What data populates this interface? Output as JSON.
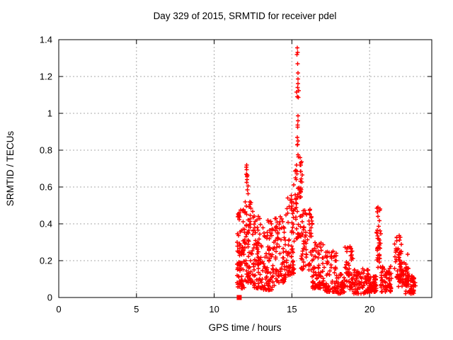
{
  "chart_data": {
    "type": "scatter",
    "title": "Day 329 of 2015, SRMTID for receiver pdel",
    "xlabel": "GPS time / hours",
    "ylabel": "SRMTID / TECUs",
    "xlim": [
      0,
      24
    ],
    "ylim": [
      0,
      1.4
    ],
    "xticks": [
      0,
      5,
      10,
      15,
      20
    ],
    "xtick_labels": [
      "0",
      "5",
      "10",
      "15",
      "20"
    ],
    "yticks": [
      0,
      0.2,
      0.4,
      0.6,
      0.8,
      1.0,
      1.2,
      1.4
    ],
    "ytick_labels": [
      "0",
      "0.2",
      "0.4",
      "0.6",
      "0.8",
      "1",
      "1.2",
      "1.4"
    ],
    "grid": true,
    "grid_style": "dashed",
    "grid_color": "#a9a9a9",
    "border_color": "#000000",
    "marker": "plus",
    "marker_color": "#ff0000",
    "data_extent_hours": [
      11.45,
      22.95
    ],
    "seed": 1329,
    "clusters": [
      [
        11.45,
        11.95,
        0.05,
        0.48,
        80,
        1.6
      ],
      [
        11.95,
        12.55,
        0.08,
        0.52,
        80,
        1.7
      ],
      [
        12.05,
        12.18,
        0.56,
        0.72,
        8,
        1.0
      ],
      [
        12.55,
        13.1,
        0.05,
        0.46,
        70,
        1.7
      ],
      [
        13.1,
        13.95,
        0.04,
        0.44,
        90,
        1.8
      ],
      [
        13.95,
        14.6,
        0.08,
        0.46,
        70,
        1.6
      ],
      [
        14.6,
        15.15,
        0.12,
        0.55,
        60,
        1.5
      ],
      [
        14.95,
        15.12,
        0.45,
        0.62,
        8,
        1.0
      ],
      [
        15.2,
        15.6,
        0.32,
        0.78,
        46,
        1.3
      ],
      [
        15.3,
        15.45,
        0.8,
        1.36,
        10,
        1.0
      ],
      [
        15.5,
        15.7,
        0.55,
        0.74,
        13,
        1.0
      ],
      [
        15.6,
        16.3,
        0.15,
        0.48,
        68,
        1.5
      ],
      [
        16.3,
        17.1,
        0.05,
        0.3,
        80,
        1.7
      ],
      [
        17.1,
        17.9,
        0.03,
        0.26,
        68,
        1.6
      ],
      [
        17.9,
        18.4,
        0.02,
        0.13,
        38,
        1.4
      ],
      [
        18.4,
        18.95,
        0.04,
        0.3,
        52,
        1.5
      ],
      [
        18.95,
        19.95,
        0.02,
        0.16,
        90,
        1.5
      ],
      [
        19.95,
        20.45,
        0.03,
        0.12,
        52,
        1.3
      ],
      [
        20.45,
        20.72,
        0.15,
        0.49,
        36,
        1.2
      ],
      [
        20.72,
        21.45,
        0.03,
        0.17,
        62,
        1.4
      ],
      [
        21.6,
        22.05,
        0.1,
        0.34,
        44,
        1.2
      ],
      [
        21.85,
        22.5,
        0.06,
        0.2,
        52,
        1.4
      ],
      [
        22.3,
        22.95,
        0.02,
        0.12,
        52,
        1.3
      ]
    ],
    "peak_points": [
      [
        15.35,
        1.355
      ],
      [
        15.38,
        1.33
      ],
      [
        15.33,
        1.32
      ],
      [
        15.36,
        1.27
      ],
      [
        15.4,
        1.22
      ],
      [
        15.37,
        1.14
      ],
      [
        15.35,
        1.09
      ],
      [
        15.39,
        0.96
      ],
      [
        15.34,
        0.87
      ],
      [
        15.38,
        0.83
      ],
      [
        12.1,
        0.72
      ],
      [
        12.08,
        0.695
      ],
      [
        12.12,
        0.665
      ],
      [
        12.1,
        0.625
      ],
      [
        20.55,
        0.49
      ],
      [
        20.5,
        0.465
      ],
      [
        20.53,
        0.44
      ],
      [
        22.45,
        0.235
      ]
    ],
    "square_marker": {
      "x": 11.61,
      "y": 0
    }
  }
}
